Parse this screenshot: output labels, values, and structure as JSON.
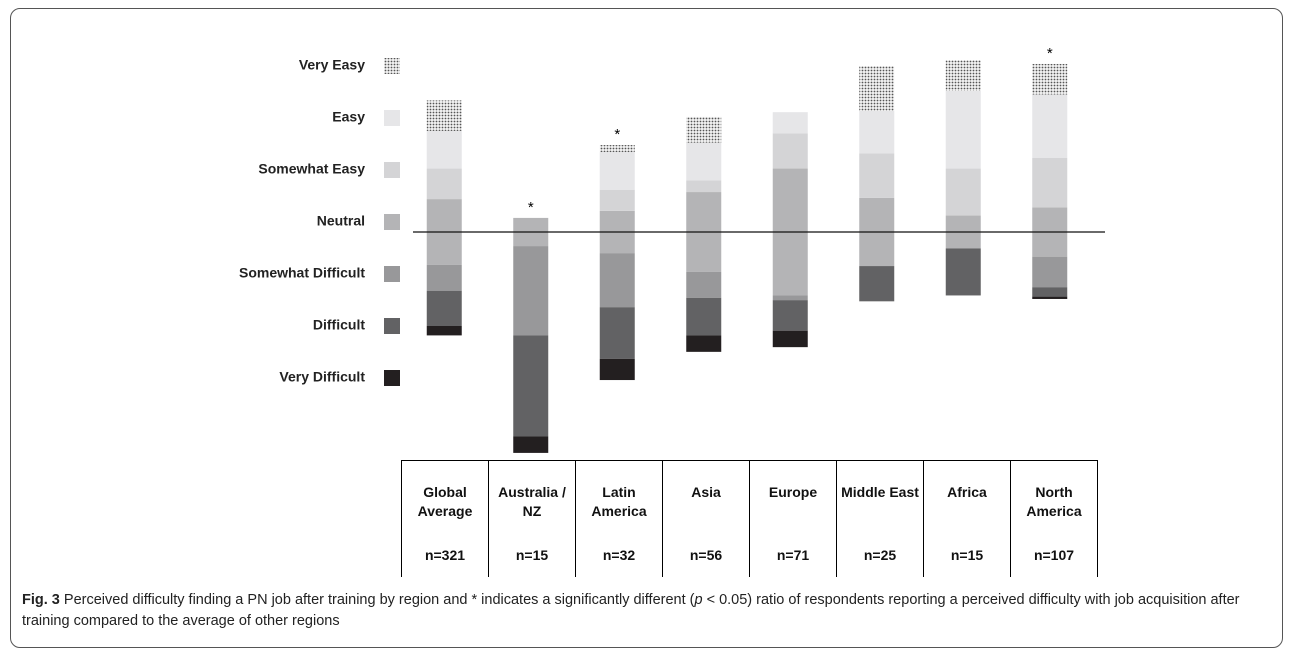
{
  "chart_data": {
    "type": "diverging_stacked_bar",
    "categories": [
      "Global Average",
      "Australia / NZ",
      "Latin America",
      "Asia",
      "Europe",
      "Middle East",
      "Africa",
      "North America"
    ],
    "sample_sizes": [
      "n=321",
      "n=15",
      "n=32",
      "n=56",
      "n=71",
      "n=25",
      "n=15",
      "n=107"
    ],
    "markers": [
      null,
      "*",
      "*",
      null,
      null,
      null,
      null,
      "*"
    ],
    "series": [
      {
        "name": "Very Easy",
        "color": "#555555",
        "pattern": "dots",
        "side": "positive",
        "values": [
          13,
          0,
          3,
          11,
          0,
          19,
          13,
          13
        ]
      },
      {
        "name": "Easy",
        "color": "#e6e6e8",
        "side": "positive",
        "values": [
          16,
          0,
          16,
          16,
          9,
          18,
          33,
          27
        ]
      },
      {
        "name": "Somewhat Easy",
        "color": "#d4d4d6",
        "side": "positive",
        "values": [
          13,
          0,
          9,
          5,
          15,
          19,
          20,
          21
        ]
      },
      {
        "name": "Neutral",
        "color": "#b4b4b6",
        "side": "neutral",
        "values": [
          28,
          12,
          18,
          34,
          54,
          29,
          14,
          21
        ]
      },
      {
        "name": "Somewhat Difficult",
        "color": "#98989a",
        "side": "negative",
        "values": [
          11,
          38,
          23,
          11,
          2,
          0,
          0,
          13
        ]
      },
      {
        "name": "Difficult",
        "color": "#626264",
        "side": "negative",
        "values": [
          15,
          43,
          22,
          16,
          13,
          15,
          20,
          4
        ]
      },
      {
        "name": "Very Difficult",
        "color": "#231f20",
        "side": "negative",
        "values": [
          4,
          7,
          9,
          7,
          7,
          0,
          0,
          1
        ]
      }
    ],
    "caption_label": "Fig. 3",
    "caption_text_1": " Perceived difficulty finding a PN job after training by region and * indicates a significantly different (",
    "caption_p": "p",
    "caption_text_2": " < 0.05) ratio of respondents reporting a perceived difficulty with job acquisition after training compared to the average of other regions"
  }
}
